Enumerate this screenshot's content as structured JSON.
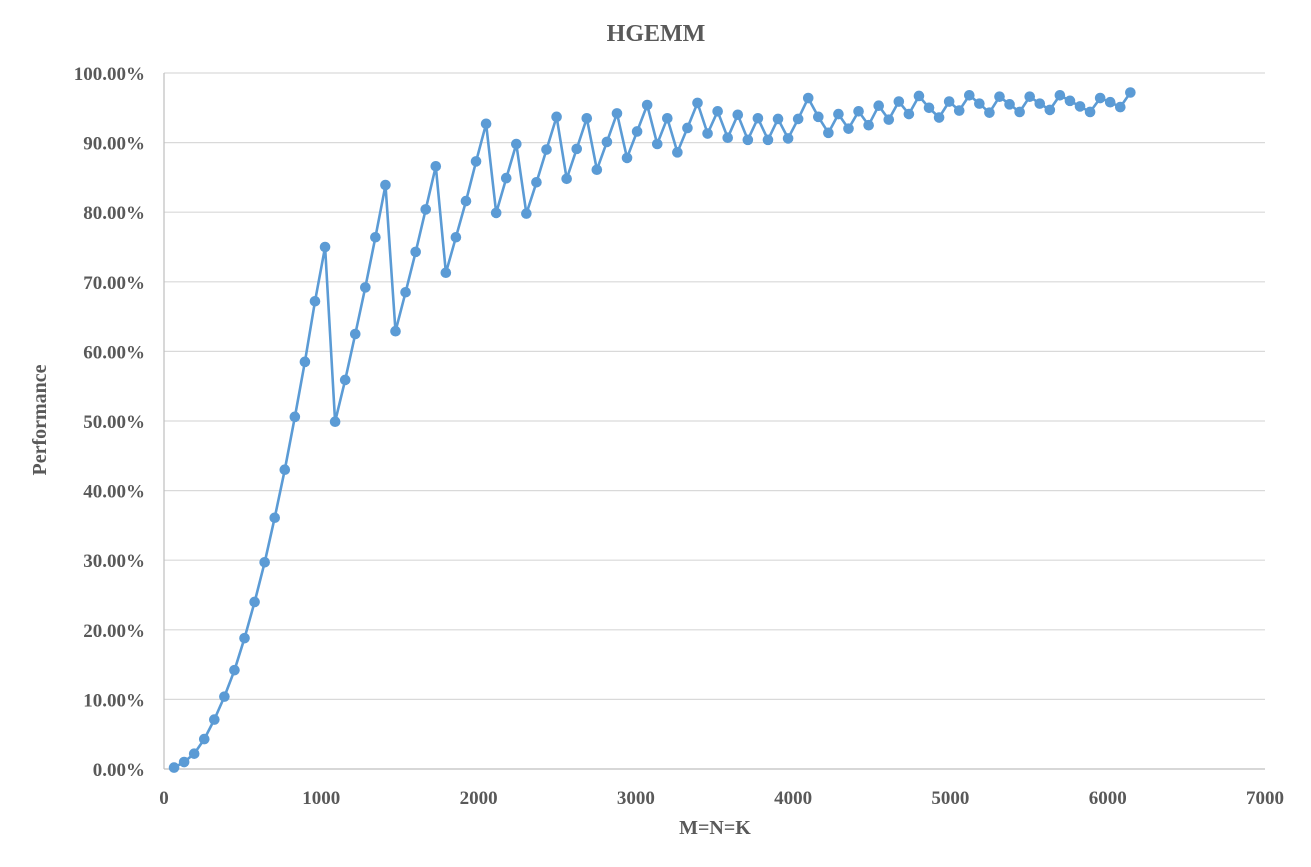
{
  "chart_data": {
    "type": "line",
    "title": "HGEMM",
    "xlabel": "M=N=K",
    "ylabel": "Performance",
    "xlim": [
      0,
      7000
    ],
    "ylim": [
      0,
      100
    ],
    "x_ticks": [
      "0",
      "1000",
      "2000",
      "3000",
      "4000",
      "5000",
      "6000",
      "7000"
    ],
    "y_ticks": [
      "0.00%",
      "10.00%",
      "20.00%",
      "30.00%",
      "40.00%",
      "50.00%",
      "60.00%",
      "70.00%",
      "80.00%",
      "90.00%",
      "100.00%"
    ],
    "grid": true,
    "legend": "none",
    "colors": {
      "series": "#5b9bd5",
      "grid": "#d9d9d9",
      "text": "#595959"
    },
    "series": [
      {
        "x": [
          64,
          128,
          192,
          256,
          320,
          384,
          448,
          512,
          576,
          640,
          704,
          768,
          832,
          896,
          960,
          1024,
          1088,
          1152,
          1216,
          1280,
          1344,
          1408,
          1472,
          1536,
          1600,
          1664,
          1728,
          1792,
          1856,
          1920,
          1984,
          2048,
          2112,
          2176,
          2240,
          2304,
          2368,
          2432,
          2496,
          2560,
          2624,
          2688,
          2752,
          2816,
          2880,
          2944,
          3008,
          3072,
          3136,
          3200,
          3264,
          3328,
          3392,
          3456,
          3520,
          3584,
          3648,
          3712,
          3776,
          3840,
          3904,
          3968,
          4032,
          4096,
          4160,
          4224,
          4288,
          4352,
          4416,
          4480,
          4544,
          4608,
          4672,
          4736,
          4800,
          4864,
          4928,
          4992,
          5056,
          5120,
          5184,
          5248,
          5312,
          5376,
          5440,
          5504,
          5568,
          5632,
          5696,
          5760,
          5824,
          5888,
          5952,
          6016,
          6080,
          6144
        ],
        "y": [
          0.2,
          1.0,
          2.2,
          4.3,
          7.1,
          10.4,
          14.2,
          18.8,
          24.0,
          29.7,
          36.1,
          43.0,
          50.6,
          58.5,
          67.2,
          75.0,
          49.9,
          55.9,
          62.5,
          69.2,
          76.4,
          83.9,
          62.9,
          68.5,
          74.3,
          80.4,
          86.6,
          71.3,
          76.4,
          81.6,
          87.3,
          92.7,
          79.9,
          84.9,
          89.8,
          79.8,
          84.3,
          89.0,
          93.7,
          84.8,
          89.1,
          93.5,
          86.1,
          90.1,
          94.2,
          87.8,
          91.6,
          95.4,
          89.8,
          93.5,
          88.6,
          92.1,
          95.7,
          91.3,
          94.5,
          90.7,
          94.0,
          90.4,
          93.5,
          90.4,
          93.4,
          90.6,
          93.4,
          96.4,
          93.7,
          91.4,
          94.1,
          92.0,
          94.5,
          92.5,
          95.3,
          93.3,
          95.9,
          94.1,
          96.7,
          95.0,
          93.6,
          95.9,
          94.6,
          96.8,
          95.6,
          94.3,
          96.6,
          95.5,
          94.4,
          96.6,
          95.6,
          94.7,
          96.8,
          96.0,
          95.2,
          94.4,
          96.4,
          95.8,
          95.1,
          97.2
        ]
      }
    ]
  }
}
